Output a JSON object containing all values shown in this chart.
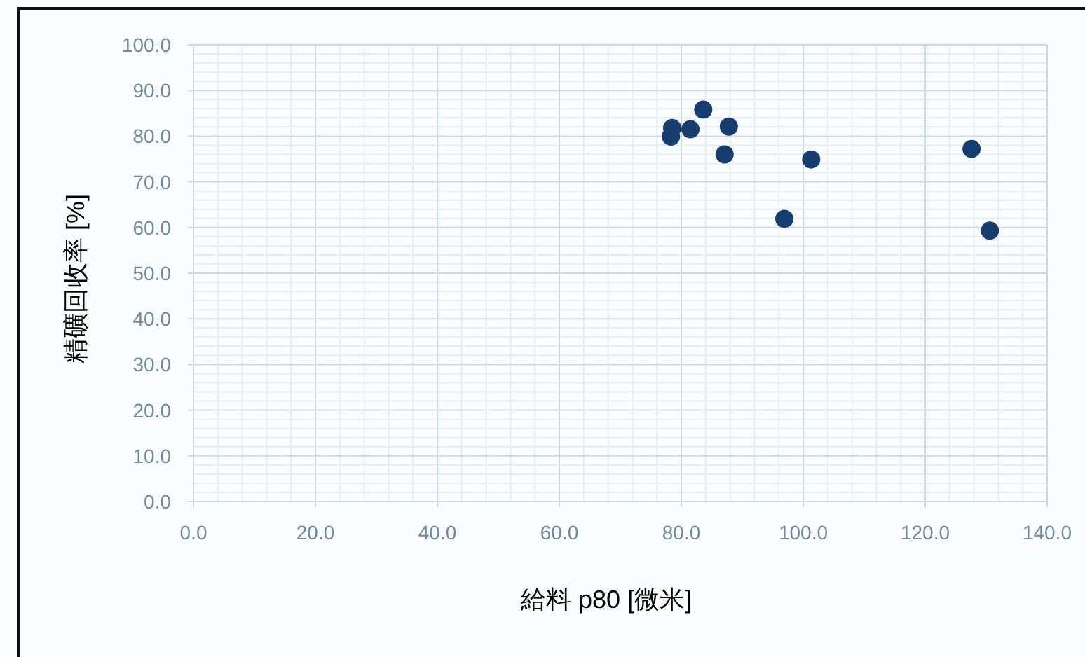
{
  "chart_data": {
    "type": "scatter",
    "xlabel": "給料 p80 [微米]",
    "ylabel": "精礦回收率 [%]",
    "series": [
      {
        "color": "#163d6e",
        "x": [
          78.3,
          78.5,
          81.5,
          83.6,
          87.8,
          87.1,
          101.3,
          96.9,
          127.6,
          130.6
        ],
        "values": [
          79.9,
          81.8,
          81.5,
          85.8,
          82.1,
          76.0,
          74.9,
          61.9,
          77.2,
          59.3
        ]
      }
    ],
    "xlim": [
      0,
      140
    ],
    "ylim": [
      0,
      100
    ],
    "xticks": [
      {
        "value": 0,
        "label": "0.0"
      },
      {
        "value": 20,
        "label": "20.0"
      },
      {
        "value": 40,
        "label": "40.0"
      },
      {
        "value": 60,
        "label": "60.0"
      },
      {
        "value": 80,
        "label": "80.0"
      },
      {
        "value": 100,
        "label": "100.0"
      },
      {
        "value": 120,
        "label": "120.0"
      },
      {
        "value": 140,
        "label": "140.0"
      }
    ],
    "yticks": [
      {
        "value": 0,
        "label": "0.0"
      },
      {
        "value": 10,
        "label": "10.0"
      },
      {
        "value": 20,
        "label": "20.0"
      },
      {
        "value": 30,
        "label": "30.0"
      },
      {
        "value": 40,
        "label": "40.0"
      },
      {
        "value": 50,
        "label": "50.0"
      },
      {
        "value": 60,
        "label": "60.0"
      },
      {
        "value": 70,
        "label": "70.0"
      },
      {
        "value": 80,
        "label": "80.0"
      },
      {
        "value": 90,
        "label": "90.0"
      },
      {
        "value": 100,
        "label": "100.0"
      }
    ],
    "grid": true,
    "marker": "circle"
  }
}
